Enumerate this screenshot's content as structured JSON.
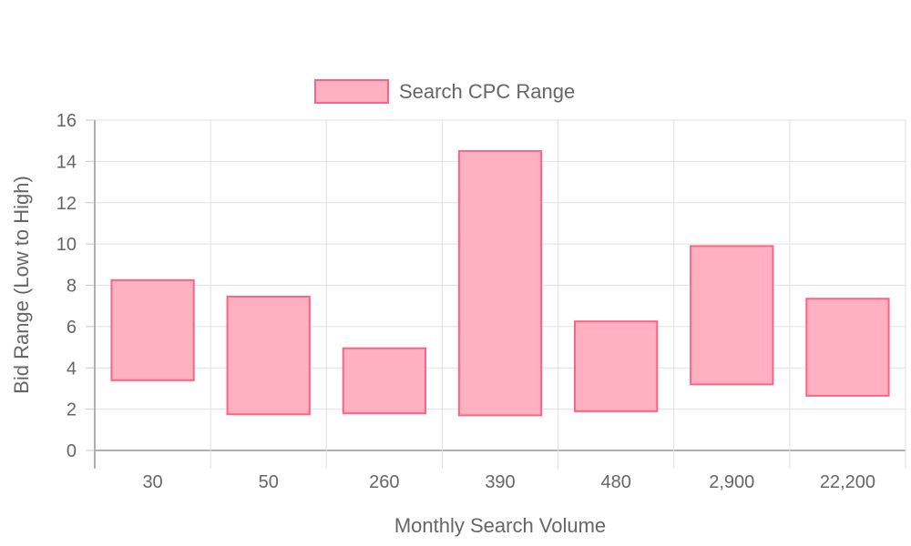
{
  "chart_data": {
    "type": "bar",
    "subtype": "floating-range",
    "title": "",
    "xlabel": "Monthly Search Volume",
    "ylabel": "Bid Range (Low to High)",
    "categories": [
      "30",
      "50",
      "260",
      "390",
      "480",
      "2,900",
      "22,200"
    ],
    "series": [
      {
        "name": "Search CPC Range",
        "low": [
          3.4,
          1.75,
          1.8,
          1.7,
          1.9,
          3.2,
          2.65
        ],
        "high": [
          8.25,
          7.45,
          4.95,
          14.5,
          6.25,
          9.9,
          7.35
        ],
        "fill_color": "#ffb1c1",
        "border_color": "#ff6384"
      }
    ],
    "ylim": [
      0,
      16
    ],
    "yticks": [
      "0",
      "2",
      "4",
      "6",
      "8",
      "10",
      "12",
      "14",
      "16"
    ],
    "grid": true,
    "legend_position": "top"
  }
}
